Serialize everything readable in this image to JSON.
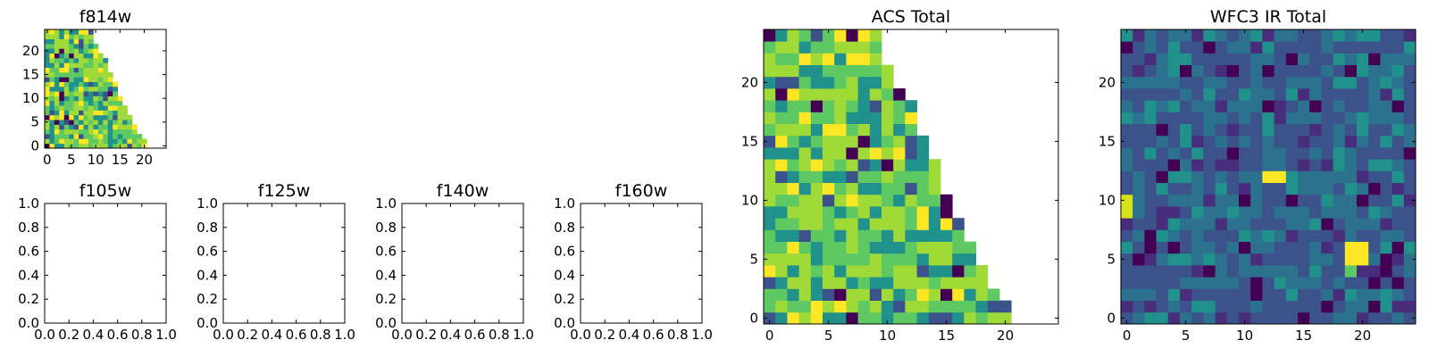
{
  "chart_data": [
    {
      "type": "heatmap",
      "title": "f814w",
      "xlabel": "",
      "ylabel": "",
      "xlim": [
        -0.5,
        24.5
      ],
      "ylim": [
        -0.5,
        24.5
      ],
      "xticks": [
        "0",
        "5",
        "10",
        "15",
        "20"
      ],
      "yticks": [
        "0",
        "5",
        "10",
        "15",
        "20"
      ],
      "colormap": "viridis",
      "grid": false,
      "row_extents": [
        20,
        20,
        19,
        18,
        18,
        17,
        17,
        16,
        16,
        15,
        15,
        14,
        14,
        14,
        13,
        13,
        12,
        12,
        12,
        11,
        10,
        10,
        9,
        9,
        9
      ]
    },
    {
      "type": "heatmap",
      "title": "f105w",
      "xlim": [
        0.0,
        1.0
      ],
      "ylim": [
        0.0,
        1.0
      ],
      "xticks": [
        "0.0",
        "0.2",
        "0.4",
        "0.6",
        "0.8",
        "1.0"
      ],
      "yticks": [
        "0.0",
        "0.2",
        "0.4",
        "0.6",
        "0.8",
        "1.0"
      ],
      "empty": true
    },
    {
      "type": "heatmap",
      "title": "f125w",
      "xlim": [
        0.0,
        1.0
      ],
      "ylim": [
        0.0,
        1.0
      ],
      "xticks": [
        "0.0",
        "0.2",
        "0.4",
        "0.6",
        "0.8",
        "1.0"
      ],
      "yticks": [
        "0.0",
        "0.2",
        "0.4",
        "0.6",
        "0.8",
        "1.0"
      ],
      "empty": true
    },
    {
      "type": "heatmap",
      "title": "f140w",
      "xlim": [
        0.0,
        1.0
      ],
      "ylim": [
        0.0,
        1.0
      ],
      "xticks": [
        "0.0",
        "0.2",
        "0.4",
        "0.6",
        "0.8",
        "1.0"
      ],
      "yticks": [
        "0.0",
        "0.2",
        "0.4",
        "0.6",
        "0.8",
        "1.0"
      ],
      "empty": true
    },
    {
      "type": "heatmap",
      "title": "f160w",
      "xlim": [
        0.0,
        1.0
      ],
      "ylim": [
        0.0,
        1.0
      ],
      "xticks": [
        "0.0",
        "0.2",
        "0.4",
        "0.6",
        "0.8",
        "1.0"
      ],
      "yticks": [
        "0.0",
        "0.2",
        "0.4",
        "0.6",
        "0.8",
        "1.0"
      ],
      "empty": true
    },
    {
      "type": "heatmap",
      "title": "ACS Total",
      "xlim": [
        -0.5,
        24.5
      ],
      "ylim": [
        -0.5,
        24.5
      ],
      "xticks": [
        "0",
        "5",
        "10",
        "15",
        "20"
      ],
      "yticks": [
        "0",
        "5",
        "10",
        "15",
        "20"
      ],
      "colormap": "viridis",
      "grid": false,
      "row_extents": [
        20,
        20,
        19,
        18,
        18,
        17,
        17,
        16,
        16,
        15,
        15,
        14,
        14,
        14,
        13,
        13,
        12,
        12,
        12,
        11,
        10,
        10,
        9,
        9,
        9
      ]
    },
    {
      "type": "heatmap",
      "title": "WFC3 IR Total",
      "xlim": [
        -0.5,
        24.5
      ],
      "ylim": [
        -0.5,
        24.5
      ],
      "xticks": [
        "0",
        "5",
        "10",
        "15",
        "20"
      ],
      "yticks": [
        "0",
        "5",
        "10",
        "15",
        "20"
      ],
      "colormap": "viridis",
      "grid": false,
      "full_grid": true
    }
  ]
}
